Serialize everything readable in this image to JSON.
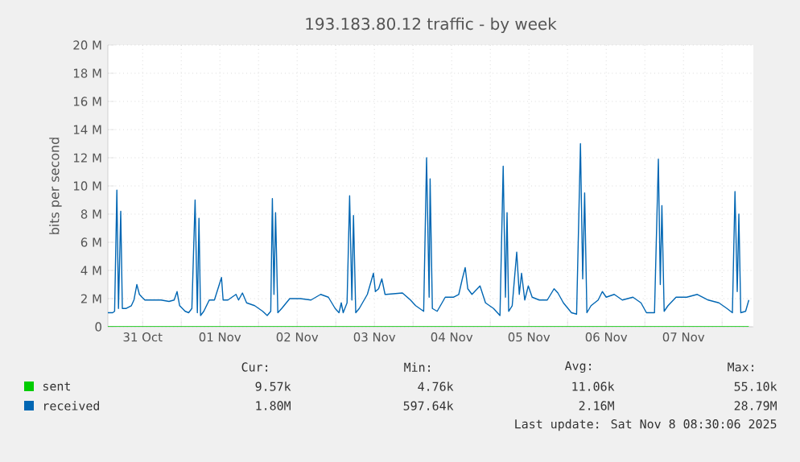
{
  "chart_data": {
    "type": "line",
    "title": "193.183.80.12 traffic - by week",
    "ylabel": "bits per second",
    "xlim": [
      "2025-10-31T01:12",
      "2025-11-08T09:42"
    ],
    "ylim": [
      0,
      20
    ],
    "xticks": [
      {
        "value": "2025-10-31T12:00",
        "label": "31 Oct"
      },
      {
        "value": "2025-11-01T00:00",
        "label": null
      },
      {
        "value": "2025-11-01T12:00",
        "label": "01 Nov"
      },
      {
        "value": "2025-11-02T00:00",
        "label": null
      },
      {
        "value": "2025-11-02T12:00",
        "label": "02 Nov"
      },
      {
        "value": "2025-11-03T00:00",
        "label": null
      },
      {
        "value": "2025-11-03T12:00",
        "label": "03 Nov"
      },
      {
        "value": "2025-11-04T00:00",
        "label": null
      },
      {
        "value": "2025-11-04T12:00",
        "label": "04 Nov"
      },
      {
        "value": "2025-11-05T00:00",
        "label": null
      },
      {
        "value": "2025-11-05T12:00",
        "label": "05 Nov"
      },
      {
        "value": "2025-11-06T00:00",
        "label": null
      },
      {
        "value": "2025-11-06T12:00",
        "label": "06 Nov"
      },
      {
        "value": "2025-11-07T00:00",
        "label": null
      },
      {
        "value": "2025-11-07T12:00",
        "label": "07 Nov"
      },
      {
        "value": "2025-11-08T00:00",
        "label": null
      }
    ],
    "yticks": [
      0,
      {
        "value": 2,
        "label": "2 M"
      },
      {
        "value": 4,
        "label": "4 M"
      },
      {
        "value": 6,
        "label": "6 M"
      },
      {
        "value": 8,
        "label": "8 M"
      },
      {
        "value": 10,
        "label": "10 M"
      },
      {
        "value": 12,
        "label": "12 M"
      },
      {
        "value": 14,
        "label": "14 M"
      },
      {
        "value": 16,
        "label": "16 M"
      },
      {
        "value": 18,
        "label": "18 M"
      },
      {
        "value": 20,
        "label": "20 M"
      }
    ],
    "grid": true,
    "legend": "bottom",
    "series": [
      {
        "name": "sent",
        "color": "#00cc00",
        "x": [
          "2025-10-31T01:12",
          "2025-11-08T08:18"
        ],
        "values": [
          0,
          0
        ]
      },
      {
        "name": "received",
        "color": "#0066b3",
        "x": [
          "2025-10-31T01:12",
          "2025-10-31T02:42",
          "2025-10-31T03:18",
          "2025-10-31T04:00",
          "2025-10-31T04:30",
          "2025-10-31T05:12",
          "2025-10-31T05:42",
          "2025-10-31T06:48",
          "2025-10-31T08:30",
          "2025-10-31T09:18",
          "2025-10-31T10:12",
          "2025-10-31T11:00",
          "2025-10-31T11:48",
          "2025-10-31T12:42",
          "2025-10-31T17:42",
          "2025-10-31T20:12",
          "2025-10-31T21:48",
          "2025-10-31T22:42",
          "2025-10-31T23:30",
          "2025-11-01T01:12",
          "2025-11-01T02:18",
          "2025-11-01T03:18",
          "2025-11-01T04:18",
          "2025-11-01T05:00",
          "2025-11-01T05:30",
          "2025-11-01T06:00",
          "2025-11-01T07:00",
          "2025-11-01T08:42",
          "2025-11-01T10:18",
          "2025-11-01T12:30",
          "2025-11-01T13:00",
          "2025-11-01T14:30",
          "2025-11-01T17:00",
          "2025-11-01T17:48",
          "2025-11-01T19:00",
          "2025-11-01T20:18",
          "2025-11-01T22:48",
          "2025-11-02T01:18",
          "2025-11-02T02:42",
          "2025-11-02T03:48",
          "2025-11-02T04:18",
          "2025-11-02T04:48",
          "2025-11-02T05:18",
          "2025-11-02T06:00",
          "2025-11-02T07:12",
          "2025-11-02T09:42",
          "2025-11-02T13:00",
          "2025-11-02T16:18",
          "2025-11-02T19:18",
          "2025-11-02T21:42",
          "2025-11-02T23:48",
          "2025-11-03T01:00",
          "2025-11-03T01:42",
          "2025-11-03T02:18",
          "2025-11-03T03:30",
          "2025-11-03T04:18",
          "2025-11-03T05:00",
          "2025-11-03T05:30",
          "2025-11-03T06:12",
          "2025-11-03T07:18",
          "2025-11-03T09:48",
          "2025-11-03T11:42",
          "2025-11-03T12:18",
          "2025-11-03T13:18",
          "2025-11-03T14:18",
          "2025-11-03T15:18",
          "2025-11-03T15:42",
          "2025-11-03T20:42",
          "2025-11-03T23:12",
          "2025-11-04T00:48",
          "2025-11-04T03:18",
          "2025-11-04T04:12",
          "2025-11-04T05:00",
          "2025-11-04T05:18",
          "2025-11-04T06:00",
          "2025-11-04T07:30",
          "2025-11-04T10:00",
          "2025-11-04T12:30",
          "2025-11-04T14:12",
          "2025-11-04T15:18",
          "2025-11-04T16:12",
          "2025-11-04T17:00",
          "2025-11-04T18:18",
          "2025-11-04T20:48",
          "2025-11-04T22:30",
          "2025-11-05T01:00",
          "2025-11-05T03:00",
          "2025-11-05T04:00",
          "2025-11-05T04:42",
          "2025-11-05T05:12",
          "2025-11-05T05:42",
          "2025-11-05T06:48",
          "2025-11-05T08:12",
          "2025-11-05T09:00",
          "2025-11-05T09:42",
          "2025-11-05T10:42",
          "2025-11-05T11:48",
          "2025-11-05T13:00",
          "2025-11-05T15:12",
          "2025-11-05T17:42",
          "2025-11-05T19:48",
          "2025-11-05T21:00",
          "2025-11-05T22:42",
          "2025-11-06T01:12",
          "2025-11-06T02:48",
          "2025-11-06T04:00",
          "2025-11-06T04:42",
          "2025-11-06T05:18",
          "2025-11-06T06:00",
          "2025-11-06T07:18",
          "2025-11-06T09:30",
          "2025-11-06T10:48",
          "2025-11-06T12:00",
          "2025-11-06T14:30",
          "2025-11-06T17:00",
          "2025-11-06T20:18",
          "2025-11-06T22:48",
          "2025-11-07T00:30",
          "2025-11-07T03:00",
          "2025-11-07T04:12",
          "2025-11-07T04:48",
          "2025-11-07T05:18",
          "2025-11-07T06:00",
          "2025-11-07T07:12",
          "2025-11-07T09:42",
          "2025-11-07T13:00",
          "2025-11-07T16:18",
          "2025-11-07T19:42",
          "2025-11-07T23:00",
          "2025-11-08T01:30",
          "2025-11-08T03:12",
          "2025-11-08T04:00",
          "2025-11-08T04:42",
          "2025-11-08T05:12",
          "2025-11-08T05:48",
          "2025-11-08T07:18",
          "2025-11-08T08:18"
        ],
        "values": [
          1.0,
          1.0,
          1.1,
          9.7,
          1.3,
          8.2,
          1.3,
          1.3,
          1.5,
          1.9,
          3.0,
          2.3,
          2.1,
          1.9,
          1.9,
          1.8,
          1.9,
          2.5,
          1.5,
          1.1,
          1.0,
          1.3,
          9.0,
          1.0,
          7.7,
          0.8,
          1.1,
          1.9,
          1.9,
          3.5,
          1.9,
          1.9,
          2.3,
          1.9,
          2.4,
          1.7,
          1.5,
          1.1,
          0.8,
          1.1,
          9.1,
          2.3,
          8.1,
          1.0,
          1.3,
          2.0,
          2.0,
          1.9,
          2.3,
          2.1,
          1.3,
          1.0,
          1.7,
          1.0,
          1.7,
          9.3,
          1.9,
          7.9,
          1.0,
          1.3,
          2.3,
          3.8,
          2.5,
          2.7,
          3.4,
          2.3,
          2.3,
          2.4,
          1.9,
          1.5,
          1.1,
          12.0,
          2.1,
          10.5,
          1.3,
          1.1,
          2.1,
          2.1,
          2.3,
          3.4,
          4.2,
          2.7,
          2.3,
          2.9,
          1.7,
          1.3,
          0.8,
          11.4,
          2.1,
          8.1,
          1.1,
          1.5,
          5.3,
          2.3,
          3.8,
          1.9,
          2.9,
          2.1,
          1.9,
          1.9,
          2.7,
          2.4,
          1.7,
          1.0,
          0.9,
          13.0,
          3.4,
          9.5,
          1.0,
          1.5,
          1.9,
          2.5,
          2.1,
          2.3,
          1.9,
          2.1,
          1.7,
          1.0,
          1.0,
          11.9,
          3.0,
          8.6,
          1.1,
          1.5,
          2.1,
          2.1,
          2.3,
          1.9,
          1.7,
          1.3,
          1.0,
          9.6,
          2.5,
          8.0,
          1.0,
          1.1,
          1.9
        ]
      }
    ],
    "annotations": [
      "Cur:",
      "Min:",
      "Avg:",
      "Max:",
      "9.57k",
      "4.76k",
      "11.06k",
      "55.10k",
      "1.80M",
      "597.64k",
      "2.16M",
      "28.79M",
      "Last update: Sat Nov  8 08:30:06 2025"
    ]
  }
}
